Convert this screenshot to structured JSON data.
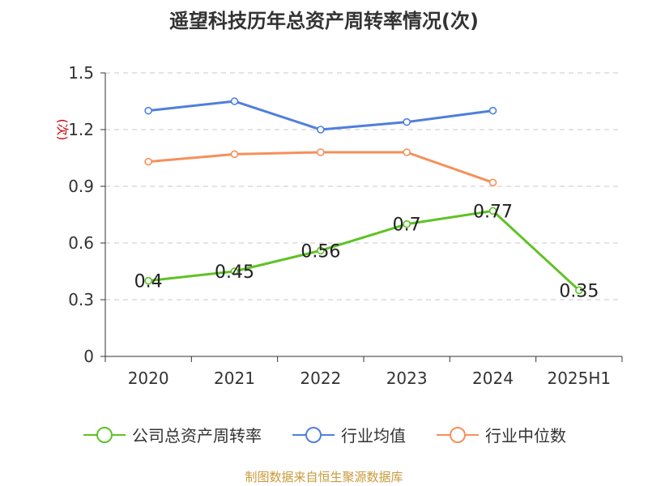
{
  "chart_data": {
    "type": "line",
    "title": "遥望科技历年总资产周转率情况(次)",
    "ylabel": "(次)",
    "xlabel": "",
    "categories": [
      "2020",
      "2021",
      "2022",
      "2023",
      "2024",
      "2025H1"
    ],
    "ylim": [
      0,
      1.5
    ],
    "yticks": [
      0,
      0.3,
      0.6,
      0.9,
      1.2,
      1.5
    ],
    "ytick_labels": [
      "0",
      "0.3",
      "0.6",
      "0.9",
      "1.2",
      "1.5"
    ],
    "grid": true,
    "legend_position": "bottom-center",
    "series": [
      {
        "name": "公司总资产周转率",
        "color": "#5ec224",
        "values": [
          0.4,
          0.45,
          0.56,
          0.7,
          0.77,
          0.35
        ],
        "labels": [
          "0.4",
          "0.45",
          "0.56",
          "0.7",
          "0.77",
          "0.35"
        ]
      },
      {
        "name": "行业均值",
        "color": "#4f7fdc",
        "values": [
          1.3,
          1.35,
          1.2,
          1.24,
          1.3,
          null
        ]
      },
      {
        "name": "行业中位数",
        "color": "#f5905a",
        "values": [
          1.03,
          1.07,
          1.08,
          1.08,
          0.92,
          null
        ]
      }
    ]
  },
  "footer": {
    "source": "制图数据来自恒生聚源数据库"
  },
  "colors": {
    "grid": "#c8c8c8",
    "axis": "#333333",
    "ylabel": "#cc0000"
  }
}
